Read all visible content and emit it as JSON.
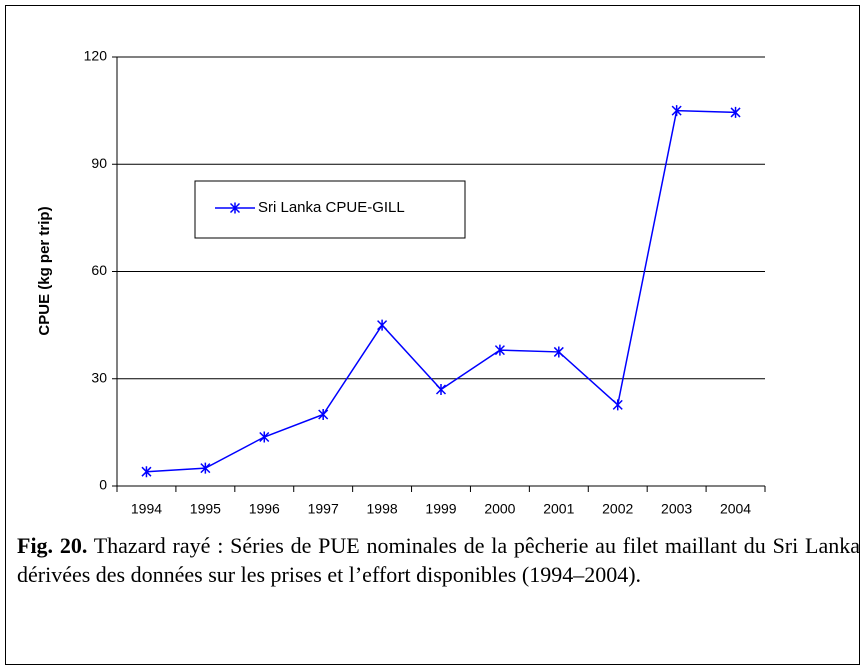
{
  "chart_data": {
    "type": "line",
    "y_label": "CPUE (kg per trip)",
    "categories": [
      "1994",
      "1995",
      "1996",
      "1997",
      "1998",
      "1999",
      "2000",
      "2001",
      "2002",
      "2003",
      "2004"
    ],
    "series": [
      {
        "name": "Sri Lanka CPUE-GILL",
        "color": "#0000ff",
        "values": [
          4,
          5,
          13.7,
          20,
          45,
          27,
          38,
          37.5,
          22.7,
          105,
          104.5
        ]
      }
    ],
    "ylim": [
      0,
      120
    ],
    "yticks": [
      0,
      30,
      60,
      90,
      120
    ],
    "grid": true
  },
  "caption": {
    "label": "Fig. 20.",
    "text": " Thazard rayé : Séries de PUE nominales de la pêcherie au filet maillant du Sri Lanka dérivées des données sur les prises et l’effort disponibles (1994–2004)."
  }
}
